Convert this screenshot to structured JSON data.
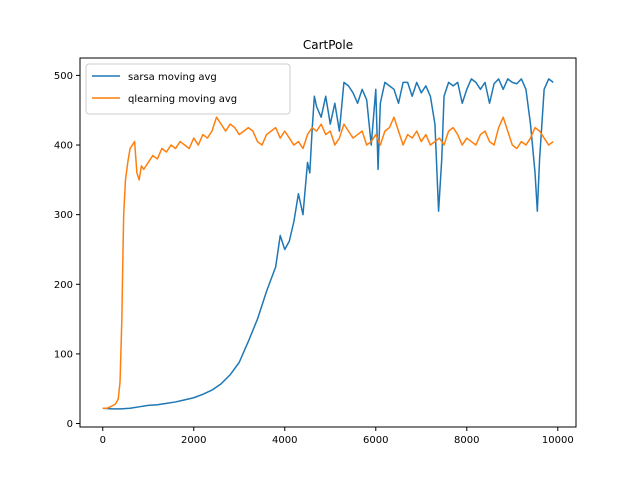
{
  "chart_data": {
    "type": "line",
    "title": "CartPole",
    "xlabel": "",
    "ylabel": "",
    "xlim": [
      -500,
      10400
    ],
    "ylim": [
      -5,
      525
    ],
    "x_ticks": [
      0,
      2000,
      4000,
      6000,
      8000,
      10000
    ],
    "y_ticks": [
      0,
      100,
      200,
      300,
      400,
      500
    ],
    "grid": false,
    "legend_position": "top-left",
    "series": [
      {
        "name": "sarsa moving avg",
        "color": "#1f77b4",
        "points": [
          [
            0,
            22
          ],
          [
            200,
            21
          ],
          [
            400,
            21
          ],
          [
            600,
            22
          ],
          [
            800,
            24
          ],
          [
            1000,
            26
          ],
          [
            1200,
            27
          ],
          [
            1400,
            29
          ],
          [
            1600,
            31
          ],
          [
            1800,
            34
          ],
          [
            2000,
            37
          ],
          [
            2200,
            42
          ],
          [
            2400,
            48
          ],
          [
            2600,
            57
          ],
          [
            2800,
            70
          ],
          [
            3000,
            88
          ],
          [
            3200,
            118
          ],
          [
            3400,
            150
          ],
          [
            3600,
            190
          ],
          [
            3800,
            225
          ],
          [
            3900,
            270
          ],
          [
            4000,
            250
          ],
          [
            4100,
            262
          ],
          [
            4200,
            290
          ],
          [
            4300,
            330
          ],
          [
            4400,
            300
          ],
          [
            4500,
            375
          ],
          [
            4550,
            360
          ],
          [
            4600,
            420
          ],
          [
            4650,
            470
          ],
          [
            4700,
            455
          ],
          [
            4800,
            440
          ],
          [
            4900,
            470
          ],
          [
            5000,
            430
          ],
          [
            5100,
            460
          ],
          [
            5200,
            420
          ],
          [
            5300,
            490
          ],
          [
            5400,
            485
          ],
          [
            5500,
            475
          ],
          [
            5600,
            460
          ],
          [
            5700,
            480
          ],
          [
            5800,
            465
          ],
          [
            5900,
            400
          ],
          [
            6000,
            480
          ],
          [
            6050,
            365
          ],
          [
            6100,
            460
          ],
          [
            6200,
            490
          ],
          [
            6300,
            485
          ],
          [
            6400,
            480
          ],
          [
            6500,
            460
          ],
          [
            6600,
            490
          ],
          [
            6700,
            490
          ],
          [
            6800,
            470
          ],
          [
            6900,
            490
          ],
          [
            7000,
            475
          ],
          [
            7100,
            485
          ],
          [
            7200,
            470
          ],
          [
            7300,
            430
          ],
          [
            7380,
            305
          ],
          [
            7450,
            380
          ],
          [
            7500,
            470
          ],
          [
            7600,
            490
          ],
          [
            7700,
            485
          ],
          [
            7800,
            490
          ],
          [
            7900,
            460
          ],
          [
            8000,
            480
          ],
          [
            8100,
            495
          ],
          [
            8200,
            490
          ],
          [
            8300,
            480
          ],
          [
            8400,
            490
          ],
          [
            8500,
            460
          ],
          [
            8600,
            488
          ],
          [
            8700,
            495
          ],
          [
            8800,
            480
          ],
          [
            8900,
            495
          ],
          [
            9000,
            490
          ],
          [
            9100,
            488
          ],
          [
            9200,
            495
          ],
          [
            9300,
            480
          ],
          [
            9400,
            430
          ],
          [
            9500,
            360
          ],
          [
            9550,
            305
          ],
          [
            9600,
            380
          ],
          [
            9700,
            480
          ],
          [
            9800,
            495
          ],
          [
            9900,
            490
          ]
        ]
      },
      {
        "name": "qlearning moving avg",
        "color": "#ff7f0e",
        "points": [
          [
            0,
            22
          ],
          [
            100,
            22
          ],
          [
            200,
            25
          ],
          [
            280,
            28
          ],
          [
            340,
            35
          ],
          [
            380,
            60
          ],
          [
            420,
            150
          ],
          [
            440,
            230
          ],
          [
            460,
            300
          ],
          [
            500,
            350
          ],
          [
            550,
            375
          ],
          [
            600,
            395
          ],
          [
            700,
            405
          ],
          [
            750,
            360
          ],
          [
            800,
            350
          ],
          [
            850,
            370
          ],
          [
            900,
            365
          ],
          [
            1000,
            375
          ],
          [
            1100,
            385
          ],
          [
            1200,
            380
          ],
          [
            1300,
            395
          ],
          [
            1400,
            390
          ],
          [
            1500,
            400
          ],
          [
            1600,
            395
          ],
          [
            1700,
            405
          ],
          [
            1800,
            400
          ],
          [
            1900,
            395
          ],
          [
            2000,
            410
          ],
          [
            2100,
            400
          ],
          [
            2200,
            415
          ],
          [
            2300,
            410
          ],
          [
            2400,
            420
          ],
          [
            2500,
            440
          ],
          [
            2600,
            430
          ],
          [
            2700,
            420
          ],
          [
            2800,
            430
          ],
          [
            2900,
            425
          ],
          [
            3000,
            415
          ],
          [
            3100,
            420
          ],
          [
            3200,
            425
          ],
          [
            3300,
            420
          ],
          [
            3400,
            405
          ],
          [
            3500,
            400
          ],
          [
            3600,
            415
          ],
          [
            3700,
            420
          ],
          [
            3800,
            425
          ],
          [
            3900,
            410
          ],
          [
            4000,
            420
          ],
          [
            4100,
            410
          ],
          [
            4200,
            400
          ],
          [
            4300,
            405
          ],
          [
            4400,
            395
          ],
          [
            4500,
            415
          ],
          [
            4600,
            425
          ],
          [
            4700,
            420
          ],
          [
            4800,
            430
          ],
          [
            4900,
            415
          ],
          [
            5000,
            420
          ],
          [
            5100,
            400
          ],
          [
            5200,
            410
          ],
          [
            5300,
            430
          ],
          [
            5400,
            420
          ],
          [
            5500,
            410
          ],
          [
            5600,
            415
          ],
          [
            5700,
            420
          ],
          [
            5800,
            400
          ],
          [
            5900,
            405
          ],
          [
            6000,
            415
          ],
          [
            6100,
            400
          ],
          [
            6200,
            420
          ],
          [
            6300,
            425
          ],
          [
            6400,
            440
          ],
          [
            6500,
            420
          ],
          [
            6600,
            400
          ],
          [
            6700,
            415
          ],
          [
            6800,
            410
          ],
          [
            6900,
            420
          ],
          [
            7000,
            405
          ],
          [
            7100,
            415
          ],
          [
            7200,
            400
          ],
          [
            7300,
            405
          ],
          [
            7400,
            410
          ],
          [
            7500,
            400
          ],
          [
            7600,
            420
          ],
          [
            7700,
            425
          ],
          [
            7800,
            415
          ],
          [
            7900,
            400
          ],
          [
            8000,
            410
          ],
          [
            8100,
            405
          ],
          [
            8200,
            400
          ],
          [
            8300,
            415
          ],
          [
            8400,
            420
          ],
          [
            8500,
            405
          ],
          [
            8600,
            400
          ],
          [
            8700,
            425
          ],
          [
            8800,
            440
          ],
          [
            8900,
            420
          ],
          [
            9000,
            400
          ],
          [
            9100,
            395
          ],
          [
            9200,
            405
          ],
          [
            9300,
            400
          ],
          [
            9400,
            410
          ],
          [
            9500,
            425
          ],
          [
            9600,
            420
          ],
          [
            9700,
            410
          ],
          [
            9800,
            400
          ],
          [
            9900,
            405
          ]
        ]
      }
    ]
  }
}
